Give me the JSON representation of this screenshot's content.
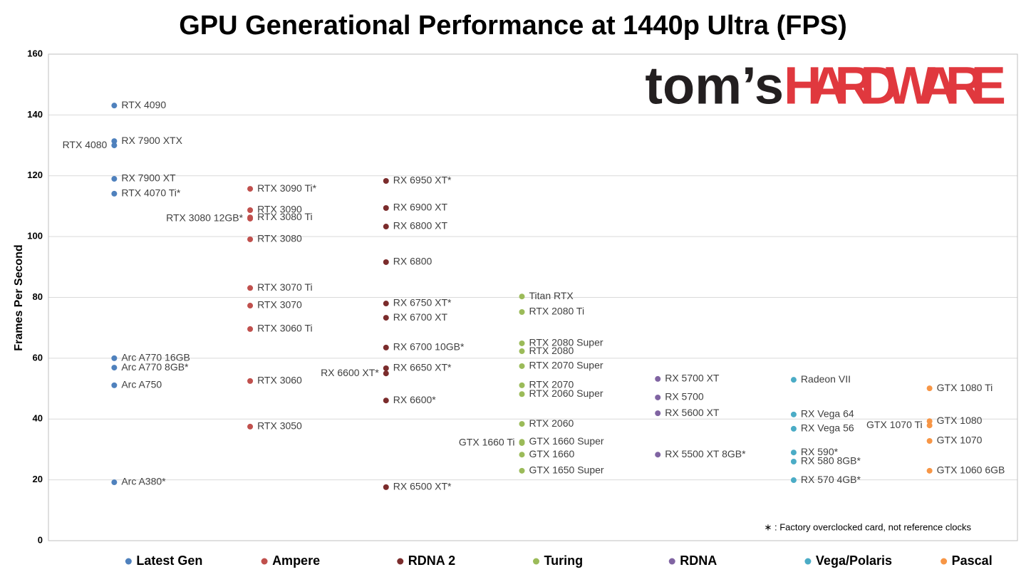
{
  "chart_data": {
    "type": "scatter",
    "title": "GPU Generational Performance at 1440p Ultra (FPS)",
    "y_label": "Frames Per Second",
    "footnote": "∗ : Factory overclocked card, not reference clocks",
    "logo": [
      "tom’s",
      "HARDWARE"
    ],
    "ylim": [
      0,
      160
    ],
    "yticks": [
      0,
      20,
      40,
      60,
      80,
      100,
      120,
      140,
      160
    ],
    "grid": true,
    "legend": "bottom",
    "series": [
      {
        "name": "Latest Gen",
        "color": "#4f81bd",
        "labels": [
          "RTX 4090",
          "RX 7900 XTX",
          "RTX 4080",
          "RX 7900 XT",
          "RTX 4070 Ti*",
          "Arc A770 16GB",
          "Arc A770 8GB*",
          "Arc A750",
          "Arc A380*"
        ],
        "values": [
          143.1,
          131.4,
          130.0,
          119.0,
          114.1,
          60.0,
          56.9,
          51.1,
          19.2
        ]
      },
      {
        "name": "Ampere",
        "color": "#c0504d",
        "labels": [
          "RTX 3090 Ti*",
          "RTX 3090",
          "RTX 3080 Ti",
          "RTX 3080 12GB*",
          "RTX 3080",
          "RTX 3070 Ti",
          "RTX 3070",
          "RTX 3060 Ti",
          "RTX 3060",
          "RTX 3050"
        ],
        "values": [
          115.7,
          108.7,
          106.3,
          105.9,
          99.1,
          83.1,
          77.3,
          69.6,
          52.5,
          37.5
        ]
      },
      {
        "name": "RDNA 2",
        "color": "#7b2c2c",
        "labels": [
          "RX 6950 XT*",
          "RX 6900 XT",
          "RX 6800 XT",
          "RX 6800",
          "RX 6750 XT*",
          "RX 6700 XT",
          "RX 6700 10GB*",
          "RX 6650 XT*",
          "RX 6600 XT*",
          "RX 6600*",
          "RX 6500 XT*"
        ],
        "values": [
          118.3,
          109.4,
          103.3,
          91.6,
          78.0,
          73.3,
          63.5,
          56.7,
          55.0,
          46.1,
          17.6
        ]
      },
      {
        "name": "Turing",
        "color": "#9bbb59",
        "labels": [
          "Titan RTX",
          "RTX 2080 Ti",
          "RTX 2080 Super",
          "RTX 2080",
          "RTX 2070 Super",
          "RTX 2070",
          "RTX 2060 Super",
          "RTX 2060",
          "GTX 1660 Super",
          "GTX 1660 Ti",
          "GTX 1660",
          "GTX 1650 Super"
        ],
        "values": [
          80.3,
          75.2,
          64.9,
          62.3,
          57.4,
          51.1,
          48.2,
          38.4,
          32.5,
          32.1,
          28.3,
          23.0
        ]
      },
      {
        "name": "RDNA",
        "color": "#8064a2",
        "labels": [
          "RX 5700 XT",
          "RX 5700",
          "RX 5600 XT",
          "RX 5500 XT 8GB*"
        ],
        "values": [
          53.2,
          47.1,
          41.9,
          28.3
        ]
      },
      {
        "name": "Vega/Polaris",
        "color": "#4bacc6",
        "labels": [
          "Radeon VII",
          "RX Vega 64",
          "RX Vega 56",
          "RX 590*",
          "RX 580 8GB*",
          "RX 570 4GB*"
        ],
        "values": [
          52.9,
          41.5,
          36.8,
          29.0,
          26.0,
          19.9
        ]
      },
      {
        "name": "Pascal",
        "color": "#f79646",
        "labels": [
          "GTX 1080 Ti",
          "GTX 1080",
          "GTX 1070 Ti",
          "GTX 1070",
          "GTX 1060 6GB"
        ],
        "values": [
          50.1,
          39.3,
          37.9,
          32.8,
          23.0
        ]
      }
    ]
  }
}
